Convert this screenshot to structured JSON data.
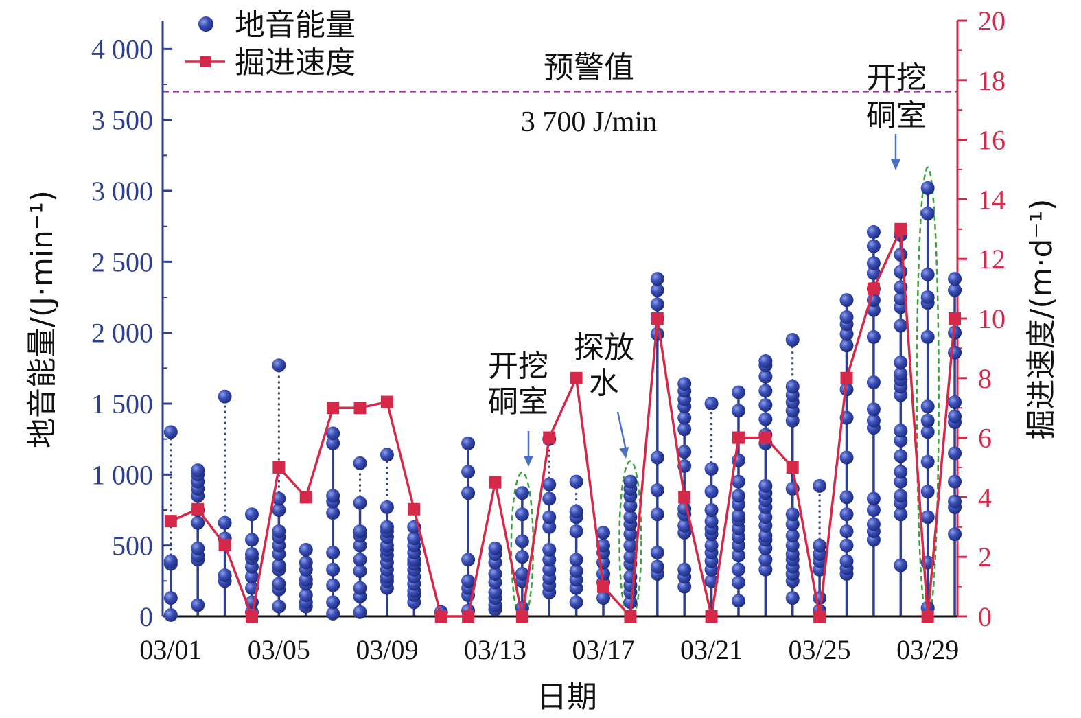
{
  "chart_data": {
    "type": "scatter",
    "xlabel": "日期",
    "ylabel_left": "地音能量/(J·min⁻¹)",
    "ylabel_right": "掘进速度/(m·d⁻¹)",
    "x_tick_labels": [
      "03/01",
      "03/05",
      "03/09",
      "03/13",
      "03/17",
      "03/21",
      "03/25",
      "03/29"
    ],
    "x_tick_days": [
      1,
      5,
      9,
      13,
      17,
      21,
      25,
      29
    ],
    "xlim_days": [
      0.7,
      30.1
    ],
    "ylim_left": [
      0,
      4200
    ],
    "yticks_left": [
      0,
      500,
      1000,
      1500,
      2000,
      2500,
      3000,
      3500,
      4000
    ],
    "yticks_left_labels": [
      "0",
      "500",
      "1 000",
      "1 500",
      "2 000",
      "2 500",
      "3 000",
      "3 500",
      "4 000"
    ],
    "ylim_right": [
      0,
      20
    ],
    "yticks_right": [
      0,
      2,
      4,
      6,
      8,
      10,
      12,
      14,
      16,
      18,
      20
    ],
    "legend": {
      "placement": "top-left",
      "items": [
        "地音能量",
        "掘进速度"
      ]
    },
    "colors": {
      "energy": "#2e3f8f",
      "speed": "#d6294a",
      "warning": "#9b3fa6",
      "highlight": "#3aa43a",
      "arrow": "#4a72c4"
    },
    "warning": {
      "value": 3700,
      "label_top": "预警值",
      "label_bottom": "3 700 J/min"
    },
    "annotations": [
      {
        "day": 14,
        "lines": [
          "开挖",
          "硐室"
        ]
      },
      {
        "day": 18,
        "lines": [
          "探放",
          "水"
        ]
      },
      {
        "day": 29,
        "lines": [
          "开挖",
          "硐室"
        ]
      }
    ],
    "series": [
      {
        "name": "地音能量",
        "points": [
          {
            "day": 1,
            "values": [
              10,
              130,
              370,
              390,
              1300
            ]
          },
          {
            "day": 2,
            "values": [
              80,
              400,
              430,
              480,
              660,
              750,
              850,
              900,
              950,
              1000,
              1030
            ]
          },
          {
            "day": 3,
            "values": [
              250,
              290,
              550,
              660,
              1550
            ]
          },
          {
            "day": 4,
            "values": [
              30,
              100,
              200,
              280,
              350,
              410,
              440,
              540,
              720
            ]
          },
          {
            "day": 5,
            "values": [
              70,
              190,
              230,
              330,
              360,
              440,
              500,
              560,
              600,
              750,
              830,
              1770
            ]
          },
          {
            "day": 6,
            "values": [
              70,
              100,
              150,
              230,
              260,
              330,
              380,
              470
            ]
          },
          {
            "day": 7,
            "values": [
              20,
              100,
              220,
              330,
              450,
              730,
              810,
              850,
              1220,
              1290
            ]
          },
          {
            "day": 8,
            "values": [
              30,
              140,
              200,
              320,
              400,
              500,
              570,
              600,
              800,
              1080
            ]
          },
          {
            "day": 9,
            "values": [
              200,
              250,
              280,
              330,
              380,
              430,
              470,
              500,
              560,
              600,
              630,
              770,
              1140
            ]
          },
          {
            "day": 10,
            "values": [
              100,
              150,
              180,
              230,
              280,
              330,
              370,
              400,
              450,
              500,
              550,
              630
            ]
          },
          {
            "day": 11,
            "values": [
              30
            ]
          },
          {
            "day": 12,
            "values": [
              40,
              150,
              200,
              250,
              400,
              870,
              1020,
              1220
            ]
          },
          {
            "day": 13,
            "values": [
              50,
              80,
              130,
              170,
              240,
              300,
              380,
              440,
              480
            ]
          },
          {
            "day": 14,
            "values": [
              60,
              250,
              300,
              420,
              530,
              720,
              870
            ]
          },
          {
            "day": 15,
            "values": [
              170,
              220,
              270,
              330,
              400,
              470,
              630,
              700,
              830,
              930,
              1250
            ]
          },
          {
            "day": 16,
            "values": [
              100,
              200,
              260,
              320,
              400,
              600,
              700,
              740,
              950
            ]
          },
          {
            "day": 17,
            "values": [
              130,
              240,
              300,
              380,
              450,
              500,
              590
            ]
          },
          {
            "day": 18,
            "values": [
              100,
              170,
              220,
              280,
              370,
              420,
              500,
              580,
              650,
              700,
              780,
              850,
              900,
              950
            ]
          },
          {
            "day": 19,
            "values": [
              300,
              350,
              450,
              720,
              890,
              1120,
              1990,
              2100,
              2200,
              2300,
              2380
            ]
          },
          {
            "day": 20,
            "values": [
              210,
              280,
              330,
              590,
              640,
              720,
              760,
              1060,
              1160,
              1320,
              1400,
              1480,
              1530,
              1590,
              1640
            ]
          },
          {
            "day": 21,
            "values": [
              250,
              330,
              390,
              450,
              500,
              580,
              620,
              670,
              750,
              880,
              1040,
              1500
            ]
          },
          {
            "day": 22,
            "values": [
              110,
              240,
              330,
              430,
              500,
              560,
              620,
              680,
              710,
              790,
              850,
              950,
              1100,
              1450,
              1580
            ]
          },
          {
            "day": 23,
            "values": [
              330,
              400,
              480,
              540,
              570,
              640,
              700,
              770,
              820,
              870,
              920,
              1220,
              1280,
              1390,
              1490,
              1590,
              1690,
              1770,
              1800
            ]
          },
          {
            "day": 24,
            "values": [
              130,
              250,
              300,
              350,
              400,
              440,
              500,
              570,
              650,
              720,
              900,
              1380,
              1450,
              1510,
              1560,
              1620,
              1950
            ]
          },
          {
            "day": 25,
            "values": [
              40,
              130,
              330,
              390,
              440,
              500,
              920
            ]
          },
          {
            "day": 26,
            "values": [
              300,
              340,
              390,
              500,
              600,
              720,
              840,
              1120,
              1400,
              1600,
              1910,
              1990,
              2060,
              2110,
              2230
            ]
          },
          {
            "day": 27,
            "values": [
              540,
              600,
              650,
              750,
              830,
              1330,
              1380,
              1460,
              1650,
              1970,
              2160,
              2230,
              2310,
              2420,
              2490,
              2610,
              2710
            ]
          },
          {
            "day": 28,
            "values": [
              360,
              720,
              800,
              850,
              950,
              1020,
              1130,
              1240,
              1310,
              1560,
              1620,
              1670,
              1710,
              1790,
              2050,
              2180,
              2240,
              2320,
              2430,
              2550,
              2690
            ]
          },
          {
            "day": 29,
            "values": [
              60,
              380,
              700,
              880,
              1090,
              1300,
              1380,
              1480,
              1970,
              2210,
              2250,
              2410,
              2840,
              3020
            ]
          },
          {
            "day": 30,
            "values": [
              580,
              770,
              810,
              950,
              1150,
              1370,
              1410,
              1510,
              1860,
              2000,
              2300,
              2380
            ]
          }
        ]
      },
      {
        "name": "掘进速度",
        "points": [
          {
            "day": 1,
            "value": 3.2
          },
          {
            "day": 2,
            "value": 3.6
          },
          {
            "day": 3,
            "value": 2.4
          },
          {
            "day": 4,
            "value": 0
          },
          {
            "day": 5,
            "value": 5
          },
          {
            "day": 6,
            "value": 4
          },
          {
            "day": 7,
            "value": 7
          },
          {
            "day": 8,
            "value": 7
          },
          {
            "day": 9,
            "value": 7.2
          },
          {
            "day": 10,
            "value": 3.6
          },
          {
            "day": 11,
            "value": 0
          },
          {
            "day": 12,
            "value": 0
          },
          {
            "day": 13,
            "value": 4.5
          },
          {
            "day": 14,
            "value": 0
          },
          {
            "day": 15,
            "value": 6
          },
          {
            "day": 16,
            "value": 8
          },
          {
            "day": 17,
            "value": 1
          },
          {
            "day": 18,
            "value": 0
          },
          {
            "day": 19,
            "value": 10
          },
          {
            "day": 20,
            "value": 4
          },
          {
            "day": 21,
            "value": 0
          },
          {
            "day": 22,
            "value": 6
          },
          {
            "day": 23,
            "value": 6
          },
          {
            "day": 24,
            "value": 5
          },
          {
            "day": 25,
            "value": 0
          },
          {
            "day": 26,
            "value": 8
          },
          {
            "day": 27,
            "value": 11
          },
          {
            "day": 28,
            "value": 13
          },
          {
            "day": 29,
            "value": 0
          },
          {
            "day": 30,
            "value": 10
          }
        ]
      }
    ]
  }
}
